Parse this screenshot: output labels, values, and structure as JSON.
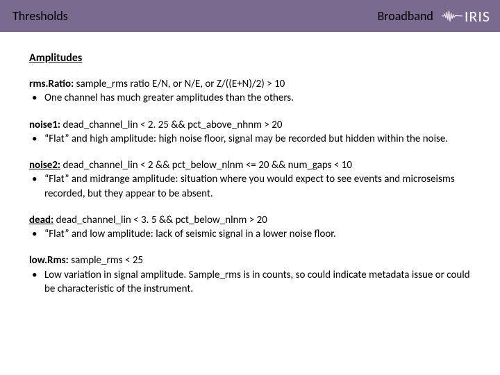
{
  "header": {
    "left": "Thresholds",
    "right": "Broadband",
    "logo_text": "IRIS",
    "bg_color": "#7b6a8f"
  },
  "section_heading": "Amplitudes",
  "items": [
    {
      "term": "rms.Ratio:",
      "underline": false,
      "definition": "sample_rms ratio E/N, or N/E, or Z/((E+N)/2) > 10",
      "bullet": "One channel has much greater amplitudes than the others."
    },
    {
      "term": "noise1:",
      "underline": false,
      "definition": "dead_channel_lin < 2. 25 && pct_above_nhnm > 20",
      "bullet": "“Flat” and high amplitude: high noise floor, signal may be recorded but hidden within the noise."
    },
    {
      "term": "noise2:",
      "underline": true,
      "definition": "dead_channel_lin < 2 && pct_below_nlnm <= 20 && num_gaps < 10",
      "bullet": "“Flat” and midrange amplitude:  situation where you would expect to see events and microseisms recorded, but they appear to be absent."
    },
    {
      "term": "dead:",
      "underline": true,
      "definition": "dead_channel_lin < 3. 5 && pct_below_nlnm > 20",
      "bullet": "“Flat” and low amplitude: lack of seismic signal in a lower noise floor."
    },
    {
      "term": "low.Rms:",
      "underline": false,
      "definition": "sample_rms < 25",
      "bullet": "Low variation in signal amplitude. Sample_rms is in counts, so could indicate metadata issue or could be characteristic of the instrument."
    }
  ]
}
